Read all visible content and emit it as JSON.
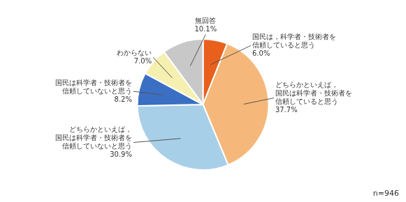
{
  "chart_data": {
    "type": "pie",
    "categories": [
      "国民は，科学者・技術者を\n信頼していると思う",
      "どちらかといえば，\n国民は科学者・技術者を\n信頼していると思う",
      "どちらかといえば，\n国民は科学者・技術者を\n信頼していないと思う",
      "国民は科学者・技術者を\n信頼していないと思う",
      "わからない",
      "無回答"
    ],
    "values": [
      6.0,
      37.7,
      30.9,
      8.2,
      7.0,
      10.1
    ],
    "colors": [
      "#e8601c",
      "#f5b87a",
      "#a8cfe8",
      "#3a6fc4",
      "#f5f0b0",
      "#c8c8c8"
    ],
    "data_labels": true,
    "value_labels": [
      "6.0%",
      "37.7%",
      "30.9%",
      "8.2%",
      "7.0%",
      "10.1%"
    ],
    "annotations": [
      "n=946"
    ]
  }
}
